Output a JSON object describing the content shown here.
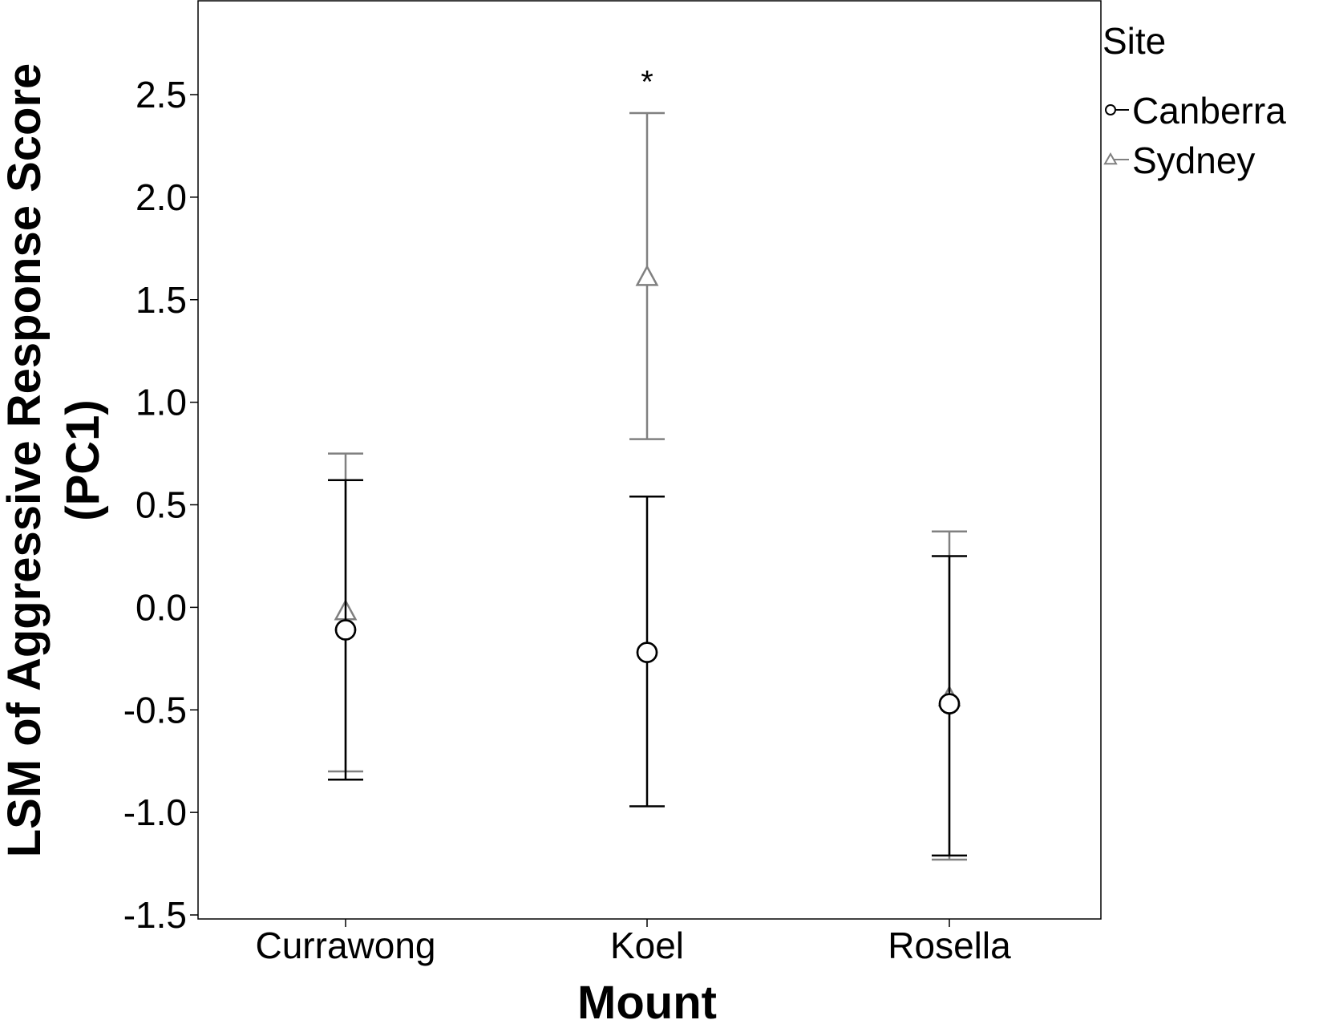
{
  "chart_data": {
    "type": "scatter",
    "xlabel": "Mount",
    "ylabel": "LSM of Aggressive Response Score (PC1)",
    "ylabel_lines": [
      "LSM of Aggressive Response Score",
      "(PC1)"
    ],
    "categories": [
      "Currawong",
      "Koel",
      "Rosella"
    ],
    "ylim": [
      -1.5,
      2.95
    ],
    "yticks": [
      -1.5,
      -1.0,
      -0.5,
      0.0,
      0.5,
      1.0,
      1.5,
      2.0,
      2.5
    ],
    "ytick_labels": [
      "-1.5",
      "-1.0",
      "-0.5",
      "0.0",
      "0.5",
      "1.0",
      "1.5",
      "2.0",
      "2.5"
    ],
    "grid": false,
    "legend": {
      "title": "Site",
      "placement": "right"
    },
    "series": [
      {
        "name": "Canberra",
        "marker": "circle",
        "color": "#000000",
        "values": [
          -0.11,
          -0.22,
          -0.47
        ],
        "lower": [
          -0.84,
          -0.97,
          -1.21
        ],
        "upper": [
          0.62,
          0.54,
          0.25
        ]
      },
      {
        "name": "Sydney",
        "marker": "triangle",
        "color": "#808080",
        "values": [
          -0.02,
          1.61,
          -0.44
        ],
        "lower": [
          -0.8,
          0.82,
          -1.23
        ],
        "upper": [
          0.75,
          2.41,
          0.37
        ]
      }
    ],
    "annotations": [
      {
        "text": "*",
        "category": "Koel",
        "y": 2.58
      }
    ]
  }
}
